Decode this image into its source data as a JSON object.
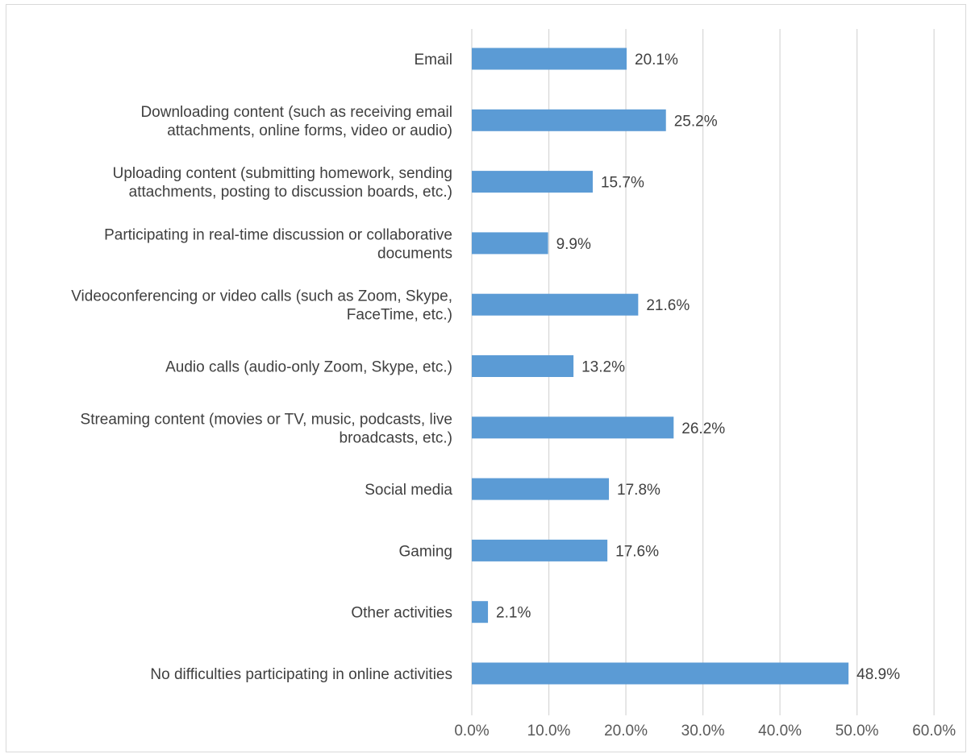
{
  "chart_data": {
    "type": "bar",
    "orientation": "horizontal",
    "title": "",
    "xlabel": "",
    "ylabel": "",
    "categories": [
      [
        "Email"
      ],
      [
        "Downloading content (such as receiving email",
        "attachments, online forms, video or audio)"
      ],
      [
        "Uploading content (submitting homework, sending",
        "attachments, posting to discussion boards, etc.)"
      ],
      [
        "Participating in real-time discussion or collaborative",
        "documents"
      ],
      [
        "Videoconferencing or video calls (such as Zoom, Skype,",
        "FaceTime, etc.)"
      ],
      [
        "Audio calls (audio-only Zoom, Skype, etc.)"
      ],
      [
        "Streaming content (movies or TV, music, podcasts, live",
        "broadcasts, etc.)"
      ],
      [
        "Social media"
      ],
      [
        "Gaming"
      ],
      [
        "Other activities"
      ],
      [
        "No difficulties participating in online activities"
      ]
    ],
    "values": [
      20.1,
      25.2,
      15.7,
      9.9,
      21.6,
      13.2,
      26.2,
      17.8,
      17.6,
      2.1,
      48.9
    ],
    "data_labels": [
      "20.1%",
      "25.2%",
      "15.7%",
      "9.9%",
      "21.6%",
      "13.2%",
      "26.2%",
      "17.8%",
      "17.6%",
      "2.1%",
      "48.9%"
    ],
    "xlim": [
      0,
      60
    ],
    "x_ticks": [
      "0.0%",
      "10.0%",
      "20.0%",
      "30.0%",
      "40.0%",
      "50.0%",
      "60.0%"
    ],
    "grid": "vertical",
    "legend": "none",
    "colors": {
      "bar": "#5b9bd5",
      "grid": "#d9d9d9",
      "text": "#404040",
      "tick_text": "#595959",
      "border": "#d9d9d9"
    }
  }
}
